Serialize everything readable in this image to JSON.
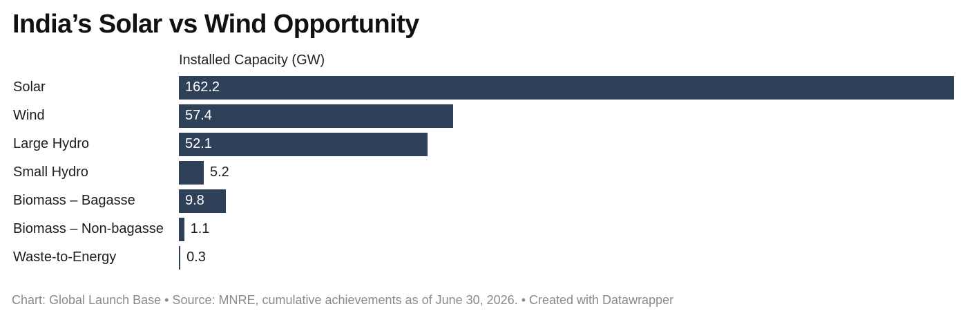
{
  "chart_data": {
    "type": "bar",
    "orientation": "horizontal",
    "title": "India’s Solar vs Wind Opportunity",
    "column_header": "Installed Capacity (GW)",
    "categories": [
      "Solar",
      "Wind",
      "Large Hydro",
      "Small Hydro",
      "Biomass – Bagasse",
      "Biomass – Non-bagasse",
      "Waste-to-Energy"
    ],
    "values": [
      162.2,
      57.4,
      52.1,
      5.2,
      9.8,
      1.1,
      0.3
    ],
    "value_labels": [
      "162.2",
      "57.4",
      "52.1",
      "5.2",
      "9.8",
      "1.1",
      "0.3"
    ],
    "xlim": [
      0,
      162.2
    ],
    "grid": false,
    "legend": "none",
    "bar_color": "#2e4159"
  },
  "footer": {
    "text": "Chart: Global Launch Base • Source: MNRE, cumulative achievements as of June 30, 2026. • Created with Datawrapper"
  }
}
